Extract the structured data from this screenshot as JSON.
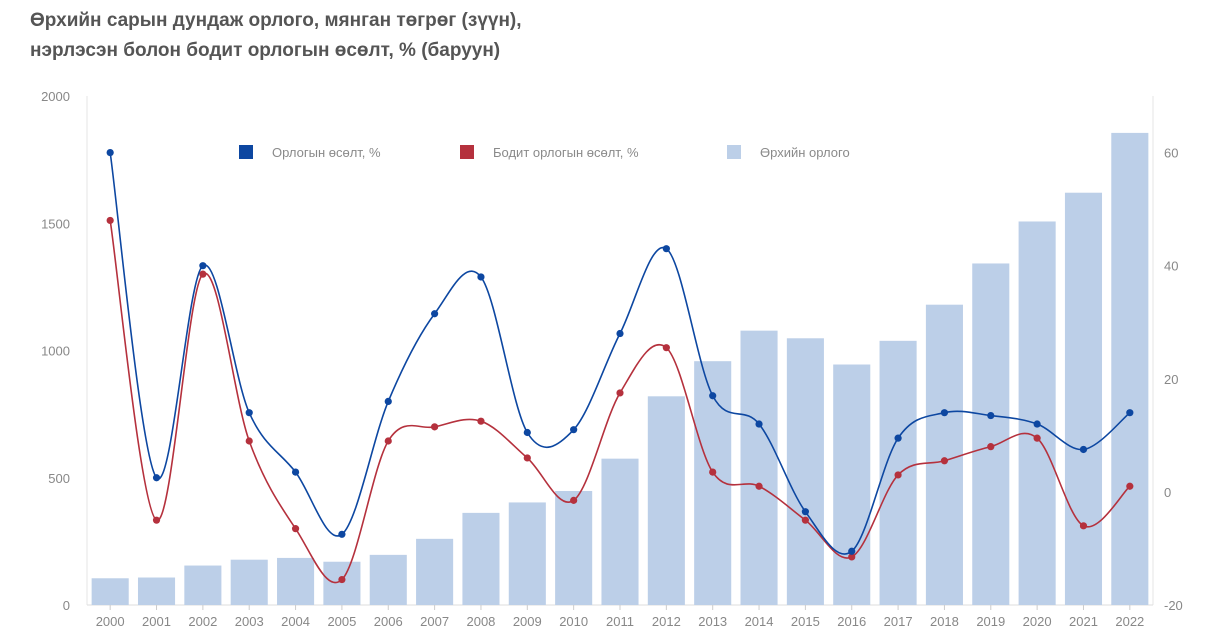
{
  "chart_data": {
    "type": "bar+line",
    "title_lines": [
      "Өрхийн сарын дундаж орлого, мянган төгрөг (зүүн),",
      "нэрлэсэн болон бодит орлогын өсөлт, % (баруун)"
    ],
    "categories": [
      "2000",
      "2001",
      "2002",
      "2003",
      "2004",
      "2005",
      "2006",
      "2007",
      "2008",
      "2009",
      "2010",
      "2011",
      "2012",
      "2013",
      "2014",
      "2015",
      "2016",
      "2017",
      "2018",
      "2019",
      "2020",
      "2021",
      "2022"
    ],
    "left_axis": {
      "ylim": [
        0,
        2000
      ],
      "ticks": [
        "0",
        "500",
        "1000",
        "1500",
        "2000"
      ]
    },
    "right_axis": {
      "ylim": [
        -20,
        70
      ],
      "ticks": [
        "-20",
        "0",
        "20",
        "40",
        "60"
      ]
    },
    "series": [
      {
        "name": "Өрхийн орлого",
        "type": "bar",
        "axis": "left",
        "color": "#bccfe8",
        "values": [
          105,
          108,
          155,
          178,
          185,
          170,
          197,
          260,
          362,
          403,
          448,
          575,
          820,
          958,
          1078,
          1048,
          945,
          1038,
          1180,
          1342,
          1507,
          1620,
          1855
        ]
      },
      {
        "name": "Орлогын өсөлт, %",
        "type": "line",
        "axis": "right",
        "color": "#0d47a1",
        "values": [
          60,
          2.5,
          40,
          14,
          3.5,
          -7.5,
          16,
          31.5,
          38,
          10.5,
          11,
          28,
          43,
          17,
          12,
          -3.5,
          -10.5,
          9.5,
          14,
          13.5,
          12,
          7.5,
          14
        ]
      },
      {
        "name": "Бодит орлогын өсөлт, %",
        "type": "line",
        "axis": "right",
        "color": "#b5313d",
        "values": [
          48,
          -5,
          38.5,
          9,
          -6.5,
          -15.5,
          9,
          11.5,
          12.5,
          6,
          -1.5,
          17.5,
          25.5,
          3.5,
          1,
          -5,
          -11.5,
          3,
          5.5,
          8,
          9.5,
          -6,
          1
        ]
      }
    ],
    "legend": [
      {
        "label": "Орлогын өсөлт, %",
        "color": "#0d47a1"
      },
      {
        "label": "Бодит орлогын өсөлт, %",
        "color": "#b5313d"
      },
      {
        "label": "Өрхийн орлого",
        "color": "#bccfe8"
      }
    ],
    "grid": false,
    "legend_position": "top"
  }
}
